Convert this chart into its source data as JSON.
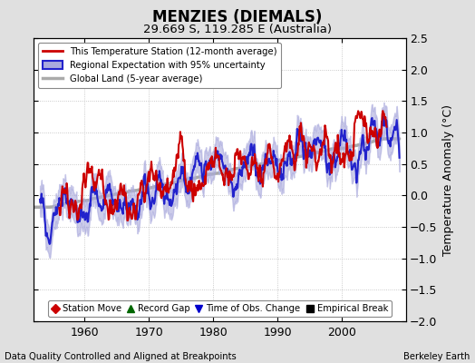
{
  "title": "MENZIES (DIEMALS)",
  "subtitle": "29.669 S, 119.285 E (Australia)",
  "ylabel": "Temperature Anomaly (°C)",
  "xlabel_left": "Data Quality Controlled and Aligned at Breakpoints",
  "xlabel_right": "Berkeley Earth",
  "ylim": [
    -2.0,
    2.5
  ],
  "xlim": [
    1952,
    2010
  ],
  "xticks": [
    1960,
    1970,
    1980,
    1990,
    2000
  ],
  "yticks": [
    -2,
    -1.5,
    -1,
    -0.5,
    0,
    0.5,
    1,
    1.5,
    2,
    2.5
  ],
  "bg_color": "#e0e0e0",
  "plot_bg_color": "#ffffff",
  "station_color": "#cc0000",
  "regional_color": "#2222cc",
  "regional_fill": "#aaaadd",
  "global_color": "#aaaaaa",
  "station_lw": 1.5,
  "regional_lw": 1.5,
  "global_lw": 2.5,
  "legend1_items": [
    {
      "label": "This Temperature Station (12-month average)",
      "color": "#cc0000",
      "lw": 2.0
    },
    {
      "label": "Regional Expectation with 95% uncertainty",
      "color": "#2222cc",
      "lw": 1.5,
      "fill": "#aaaadd"
    },
    {
      "label": "Global Land (5-year average)",
      "color": "#aaaaaa",
      "lw": 2.5
    }
  ],
  "legend2_items": [
    {
      "label": "Station Move",
      "marker": "D",
      "color": "#cc0000"
    },
    {
      "label": "Record Gap",
      "marker": "^",
      "color": "#006600"
    },
    {
      "label": "Time of Obs. Change",
      "marker": "v",
      "color": "#0000cc"
    },
    {
      "label": "Empirical Break",
      "marker": "s",
      "color": "#000000"
    }
  ]
}
